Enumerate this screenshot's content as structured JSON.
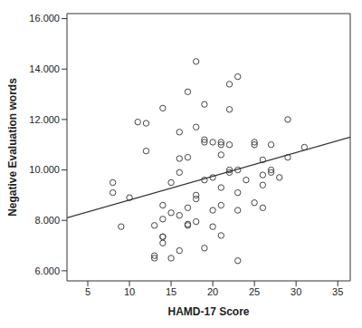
{
  "chart_data": {
    "type": "scatter",
    "x_label": "HAMD-17 Score",
    "y_label": "Negative Evaluation words",
    "color": "#444444",
    "marker": "open_circle",
    "xlim": [
      2.5,
      36.5
    ],
    "xticks": [
      5,
      10,
      15,
      20,
      25,
      30,
      35
    ],
    "ylim": [
      5.6,
      16.2
    ],
    "yticks": [
      {
        "value": 6,
        "label": "6.000"
      },
      {
        "value": 8,
        "label": "8.000"
      },
      {
        "value": 10,
        "label": "10.000"
      },
      {
        "value": 12,
        "label": "12.000"
      },
      {
        "value": 14,
        "label": "14.000"
      },
      {
        "value": 16,
        "label": "16.000"
      }
    ],
    "x": [
      8,
      8,
      9,
      10,
      11,
      12,
      12,
      13,
      13,
      13,
      14,
      14,
      14,
      14,
      14,
      14,
      15,
      15,
      15,
      16,
      16,
      16,
      16,
      16,
      17,
      17,
      17,
      17,
      17,
      18,
      18,
      18,
      18,
      18,
      19,
      19,
      19,
      19,
      19,
      20,
      20,
      20,
      20,
      21,
      21,
      21,
      21,
      21,
      21,
      22,
      22,
      22,
      22,
      22,
      23,
      23,
      23,
      23,
      23,
      24,
      25,
      25,
      25,
      26,
      26,
      26,
      26,
      27,
      27,
      27,
      28,
      29,
      29,
      31
    ],
    "values": [
      9.5,
      9.1,
      7.75,
      8.9,
      11.9,
      11.85,
      10.75,
      6.6,
      6.5,
      7.8,
      7.1,
      7.35,
      7.35,
      8.05,
      8.6,
      12.45,
      6.5,
      8.3,
      9.5,
      11.5,
      10.45,
      9.9,
      8.2,
      6.8,
      7.8,
      7.85,
      10.5,
      13.1,
      8.5,
      14.3,
      7.95,
      8.85,
      9.0,
      11.7,
      12.6,
      11.2,
      11.1,
      9.6,
      6.9,
      11.1,
      9.7,
      8.4,
      7.75,
      11.1,
      11.0,
      10.6,
      9.3,
      7.4,
      8.6,
      13.4,
      12.4,
      11.0,
      10.0,
      9.9,
      13.7,
      10.0,
      9.1,
      8.4,
      6.4,
      9.6,
      11.1,
      11.0,
      8.7,
      10.4,
      9.8,
      9.4,
      8.5,
      11.0,
      9.9,
      10.0,
      9.7,
      12.0,
      10.5,
      10.9
    ],
    "trend": {
      "type": "line",
      "color": "#333333",
      "x": [
        2.5,
        36.5
      ],
      "values": [
        8.1,
        11.3
      ]
    }
  }
}
